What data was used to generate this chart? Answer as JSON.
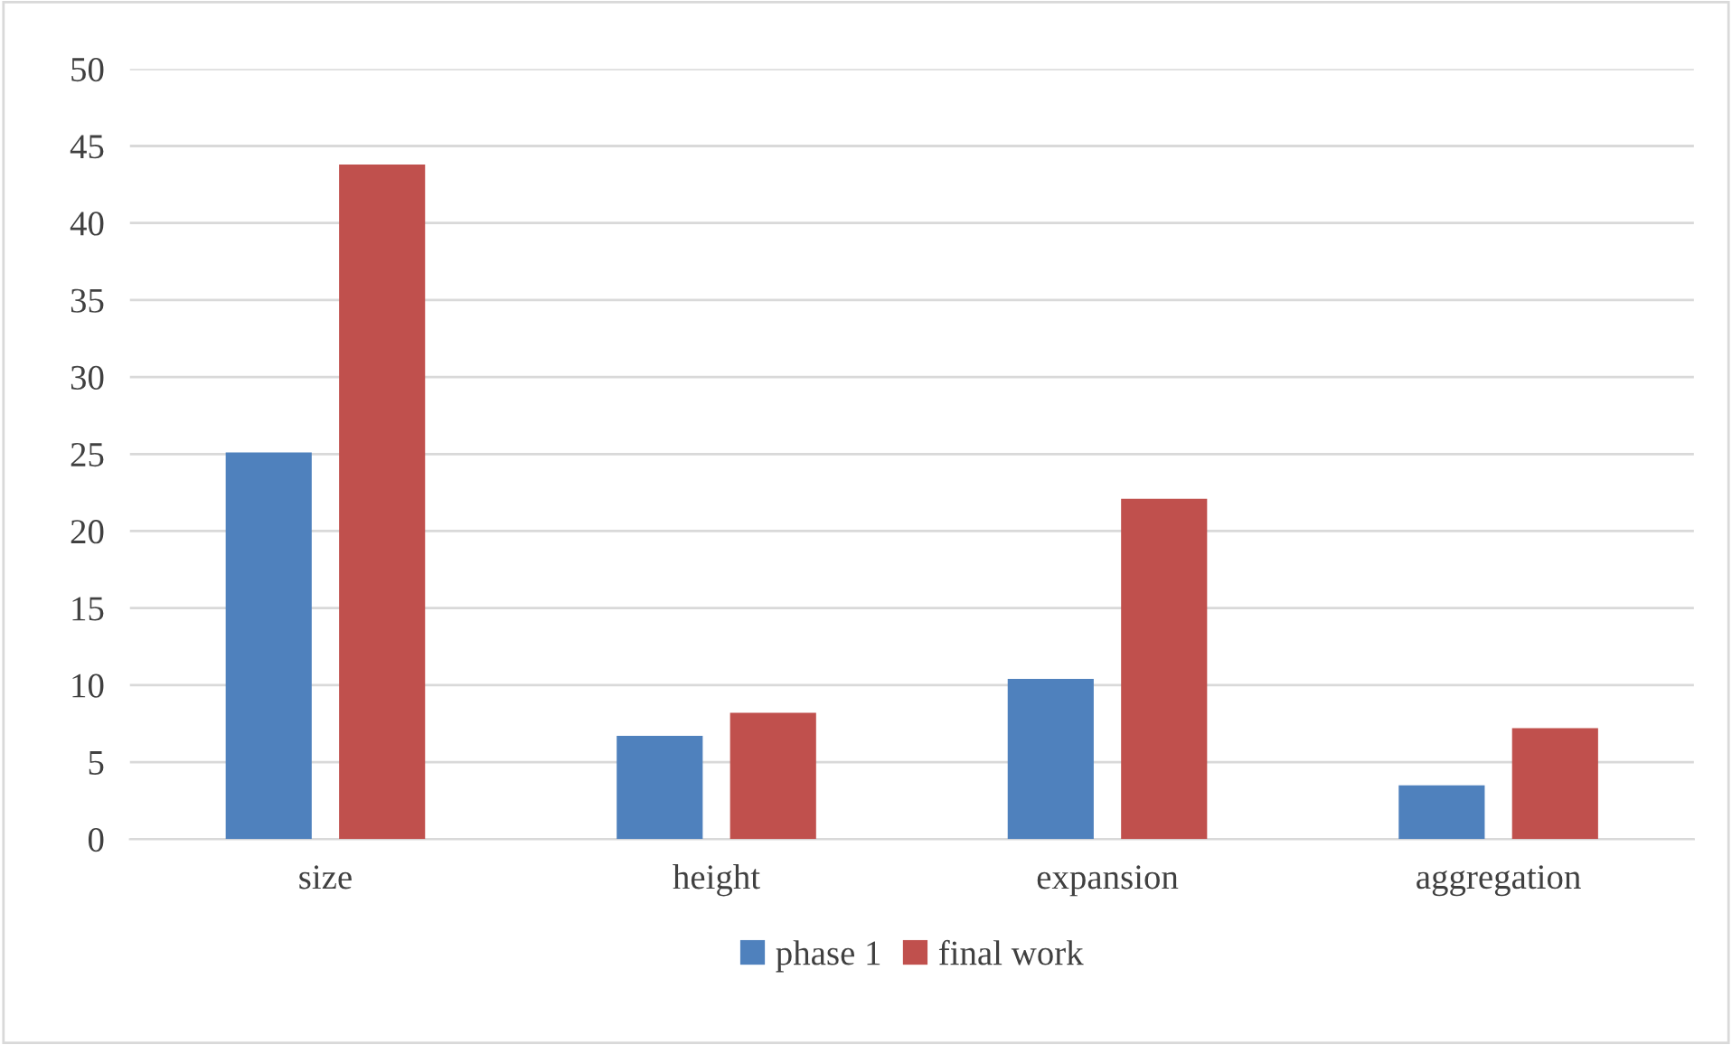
{
  "chart_data": {
    "type": "bar",
    "categories": [
      "size",
      "height",
      "expansion",
      "aggregation"
    ],
    "series": [
      {
        "name": "phase 1",
        "color": "#4f81bd",
        "values": [
          25.1,
          6.7,
          10.4,
          3.5
        ]
      },
      {
        "name": "final work",
        "color": "#c0504d",
        "values": [
          43.8,
          8.2,
          22.1,
          7.2
        ]
      }
    ],
    "ylim": [
      0,
      50
    ],
    "yticks": [
      0,
      5,
      10,
      15,
      20,
      25,
      30,
      35,
      40,
      45,
      50
    ],
    "grid": "y",
    "legend": "bottom"
  }
}
